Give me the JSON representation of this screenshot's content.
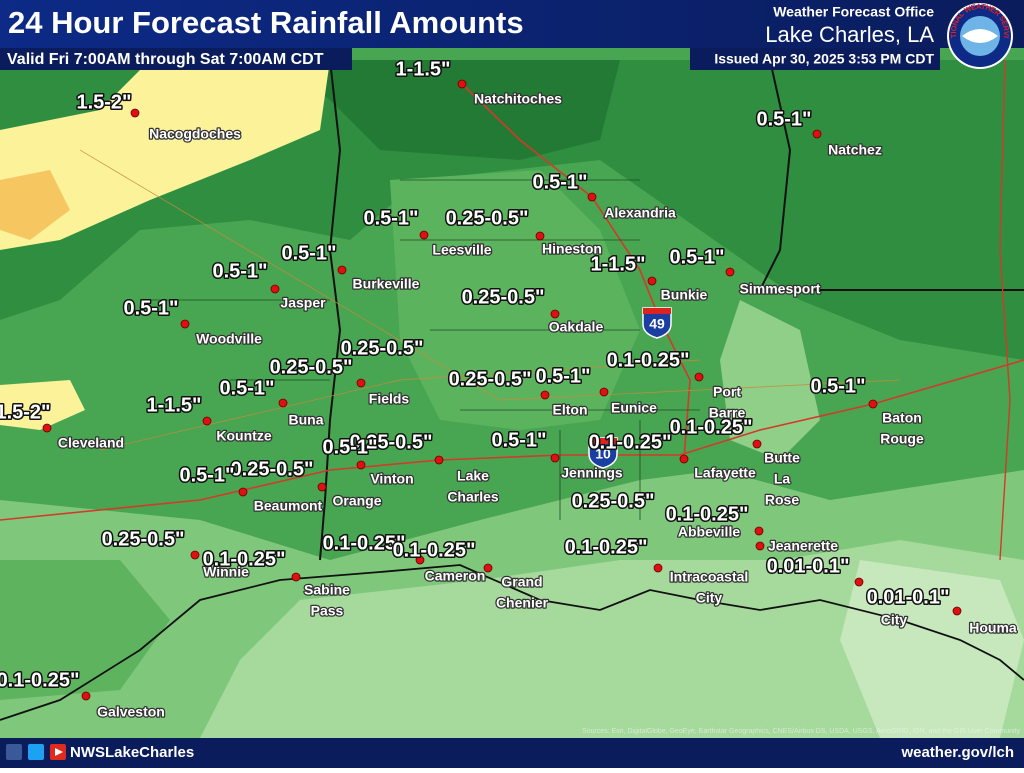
{
  "header": {
    "title": "24 Hour Forecast Rainfall Amounts",
    "valid": "Valid Fri 7:00AM through Sat 7:00AM CDT",
    "office": "Weather Forecast Office",
    "location": "Lake Charles, LA",
    "issued": "Issued Apr 30, 2025 3:53 PM CDT",
    "logo_text": "NATIONAL WEATHER SERVICE"
  },
  "map": {
    "cities": [
      [
        "Natchitoches"
      ],
      [
        "Nacogdoches"
      ],
      [
        "Natchez"
      ],
      [
        "Alexandria"
      ],
      [
        "Leesville"
      ],
      [
        "Hineston"
      ],
      [
        "Burkeville"
      ],
      [
        "Jasper"
      ],
      [
        "Bunkie"
      ],
      [
        "Simmesport"
      ],
      [
        "Woodville"
      ],
      [
        "Oakdale"
      ],
      [
        "Fields"
      ],
      [
        "Eunice"
      ],
      [
        "Elton"
      ],
      [
        "Port",
        "Barre"
      ],
      [
        "Buna"
      ],
      [
        "Kountze"
      ],
      [
        "Baton",
        "Rouge"
      ],
      [
        "Cleveland"
      ],
      [
        "Butte",
        "La",
        "Rose"
      ],
      [
        "Lafayette"
      ],
      [
        "Jennings"
      ],
      [
        "Lake",
        "Charles"
      ],
      [
        "Vinton"
      ],
      [
        "Orange"
      ],
      [
        "Beaumont"
      ],
      [
        "Abbeville"
      ],
      [
        "Jeanerette"
      ],
      [
        "Winnie"
      ],
      [
        "Sabine",
        "Pass"
      ],
      [
        "Cameron"
      ],
      [
        "Grand",
        "Chenier"
      ],
      [
        "Intracoastal",
        "City"
      ],
      [
        "City"
      ],
      [
        "Houma"
      ],
      [
        "Galveston"
      ]
    ],
    "rainfall_labels": [
      "1-1.5\"",
      "1.5-2\"",
      "0.5-1\"",
      "0.5-1\"",
      "0.5-1\"",
      "0.25-0.5\"",
      "0.5-1\"",
      "1-1.5\"",
      "0.5-1\"",
      "0.5-1\"",
      "0.25-0.5\"",
      "0.5-1\"",
      "0.25-0.5\"",
      "0.1-0.25\"",
      "0.25-0.5\"",
      "0.25-0.5\"",
      "0.5-1\"",
      "0.5-1\"",
      "0.5-1\"",
      "1-1.5\"",
      "1.5-2\"",
      "0.1-0.25\"",
      "0.25-0.5\"",
      "0.5-1\"",
      "0.1-0.25\"",
      "0.5-1\"",
      "0.25-0.5\"",
      "0.5-1\"",
      "0.25-0.5\"",
      "0.1-0.25\"",
      "0.25-0.5\"",
      "0.1-0.25\"",
      "0.1-0.25\"",
      "0.1-0.25\"",
      "0.1-0.25\"",
      "0.01-0.1\"",
      "0.01-0.1\"",
      "0.1-0.25\""
    ],
    "shields": [
      "49",
      "10"
    ],
    "credit": "Sources: Esri, DigitalGlobe, GeoEye, Earthstar Geographics, CNES/Airbus DS, USDA, USGS, AeroGRID, IGN, and the GIS User Community"
  },
  "footer": {
    "social": "NWSLakeCharles",
    "url": "weather.gov/lch"
  }
}
